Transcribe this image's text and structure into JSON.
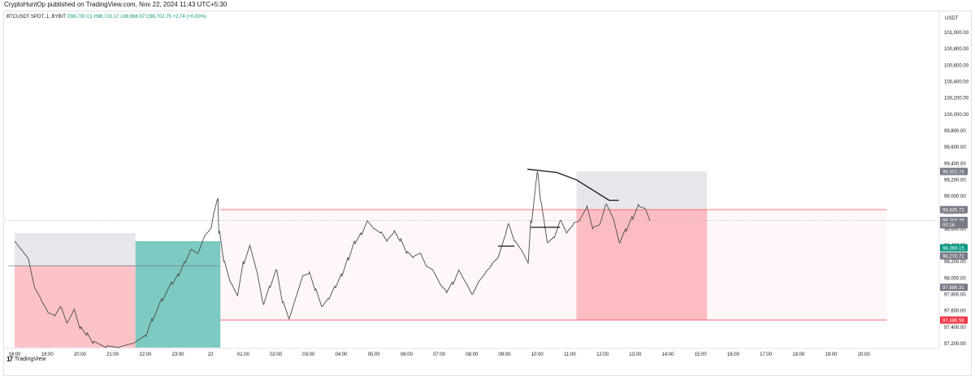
{
  "header": {
    "published": "CryptoHuntOp published on TradingView.com, Nov 22, 2024 11:43 UTC+5:30"
  },
  "symbol": {
    "name": "BTCUSDT SPOT, 1, BYBIT",
    "ohlc": "O98,700.01 H98,710.17 L98,668.97 C98,702.75 +2.74 (+0.00%)"
  },
  "footer": {
    "brand": "TradingView"
  },
  "colors": {
    "accent_green": "#089981",
    "accent_red": "#f23645",
    "profit_zone": "#26a69a",
    "loss_zone": "#f7525f",
    "neutral_zone": "#d1d4dc",
    "candle": "#4a4a4a"
  },
  "chart_data": {
    "type": "line",
    "currency": "USDT",
    "x_ticks": [
      "18:00",
      "19:00",
      "20:00",
      "21:00",
      "22:00",
      "23:00",
      "22",
      "01:00",
      "02:00",
      "03:00",
      "04:00",
      "05:00",
      "06:00",
      "07:00",
      "08:00",
      "09:00",
      "10:00",
      "11:00",
      "12:00",
      "13:00",
      "14:00",
      "15:00",
      "16:00",
      "17:00",
      "18:00",
      "19:00",
      "20:00"
    ],
    "y_ticks": [
      "101,000.00",
      "100,800.00",
      "100,600.00",
      "100,400.00",
      "100,200.00",
      "100,000.00",
      "99,800.00",
      "99,600.00",
      "99,400.00",
      "99,200.00",
      "99,000.00",
      "98,800.00",
      "98,600.00",
      "98,400.00",
      "98,200.00",
      "98,000.00",
      "97,800.00",
      "97,600.00",
      "97,400.00",
      "97,200.00"
    ],
    "y_tick_values": [
      101000,
      100800,
      100600,
      100400,
      100200,
      100000,
      99800,
      99600,
      99400,
      99200,
      99000,
      98800,
      98600,
      98400,
      98200,
      98000,
      97800,
      97600,
      97400,
      97200
    ],
    "ylim": [
      97150,
      101100
    ],
    "xlim": [
      -0.2,
      27
    ],
    "price": [
      [
        0.0,
        98450
      ],
      [
        0.2,
        98350
      ],
      [
        0.4,
        98250
      ],
      [
        0.6,
        97900
      ],
      [
        0.8,
        97750
      ],
      [
        1.0,
        97600
      ],
      [
        1.2,
        97550
      ],
      [
        1.4,
        97650
      ],
      [
        1.6,
        97450
      ],
      [
        1.8,
        97600
      ],
      [
        2.0,
        97380
      ],
      [
        2.2,
        97300
      ],
      [
        2.4,
        97200
      ],
      [
        2.8,
        97150
      ],
      [
        3.2,
        97150
      ],
      [
        3.6,
        97200
      ],
      [
        4.0,
        97300
      ],
      [
        4.2,
        97500
      ],
      [
        4.5,
        97750
      ],
      [
        4.8,
        97950
      ],
      [
        5.0,
        98050
      ],
      [
        5.2,
        98200
      ],
      [
        5.4,
        98350
      ],
      [
        5.6,
        98300
      ],
      [
        5.8,
        98500
      ],
      [
        6.0,
        98600
      ],
      [
        6.1,
        98800
      ],
      [
        6.2,
        98950
      ],
      [
        6.25,
        98550
      ],
      [
        6.4,
        98200
      ],
      [
        6.6,
        97950
      ],
      [
        6.8,
        97800
      ],
      [
        7.0,
        98200
      ],
      [
        7.2,
        98400
      ],
      [
        7.4,
        98100
      ],
      [
        7.6,
        97700
      ],
      [
        7.8,
        97900
      ],
      [
        8.0,
        98100
      ],
      [
        8.2,
        97700
      ],
      [
        8.4,
        97500
      ],
      [
        8.6,
        97750
      ],
      [
        8.8,
        98000
      ],
      [
        9.0,
        98050
      ],
      [
        9.2,
        97850
      ],
      [
        9.4,
        97650
      ],
      [
        9.6,
        97750
      ],
      [
        9.8,
        97900
      ],
      [
        10.0,
        98050
      ],
      [
        10.2,
        98250
      ],
      [
        10.4,
        98450
      ],
      [
        10.6,
        98550
      ],
      [
        10.8,
        98700
      ],
      [
        11.0,
        98600
      ],
      [
        11.2,
        98550
      ],
      [
        11.4,
        98450
      ],
      [
        11.6,
        98550
      ],
      [
        11.8,
        98450
      ],
      [
        12.0,
        98300
      ],
      [
        12.2,
        98250
      ],
      [
        12.4,
        98300
      ],
      [
        12.6,
        98150
      ],
      [
        12.8,
        98100
      ],
      [
        13.0,
        97950
      ],
      [
        13.2,
        97850
      ],
      [
        13.4,
        97950
      ],
      [
        13.6,
        98100
      ],
      [
        13.8,
        97950
      ],
      [
        14.0,
        97800
      ],
      [
        14.2,
        97950
      ],
      [
        14.4,
        98050
      ],
      [
        14.6,
        98150
      ],
      [
        14.8,
        98250
      ],
      [
        15.0,
        98500
      ],
      [
        15.1,
        98650
      ],
      [
        15.3,
        98450
      ],
      [
        15.5,
        98350
      ],
      [
        15.7,
        98200
      ],
      [
        15.8,
        98700
      ],
      [
        16.0,
        99300
      ],
      [
        16.1,
        98950
      ],
      [
        16.3,
        98450
      ],
      [
        16.5,
        98500
      ],
      [
        16.7,
        98700
      ],
      [
        16.9,
        98550
      ],
      [
        17.1,
        98650
      ],
      [
        17.3,
        98700
      ],
      [
        17.5,
        98850
      ],
      [
        17.7,
        98600
      ],
      [
        17.9,
        98650
      ],
      [
        18.1,
        98900
      ],
      [
        18.3,
        98750
      ],
      [
        18.5,
        98450
      ],
      [
        18.7,
        98600
      ],
      [
        18.9,
        98750
      ],
      [
        19.1,
        98900
      ],
      [
        19.3,
        98850
      ],
      [
        19.45,
        98700
      ]
    ],
    "zones": [
      {
        "x0": 0.0,
        "x1": 3.7,
        "y0": 98550,
        "y1": 98150,
        "kind": "neutral"
      },
      {
        "x0": 0.0,
        "x1": 3.7,
        "y0": 98150,
        "y1": 97150,
        "kind": "loss"
      },
      {
        "x0": 3.7,
        "x1": 6.3,
        "y0": 98150,
        "y1": 98450,
        "kind": "profit"
      },
      {
        "x0": 3.7,
        "x1": 6.3,
        "y0": 97150,
        "y1": 98150,
        "kind": "profit"
      },
      {
        "x0": 6.3,
        "x1": 26.7,
        "y0": 98850,
        "y1": 97487,
        "kind": "range"
      },
      {
        "x0": 17.2,
        "x1": 21.2,
        "y0": 99303,
        "y1": 98836,
        "kind": "neutral"
      },
      {
        "x0": 17.2,
        "x1": 21.2,
        "y0": 98836,
        "y1": 98700,
        "kind": "loss"
      },
      {
        "x0": 17.2,
        "x1": 21.2,
        "y0": 98700,
        "y1": 97487,
        "kind": "loss"
      }
    ],
    "levels": [
      {
        "y": 98836,
        "x0": 6.3,
        "x1": 26.7
      },
      {
        "y": 97487,
        "x0": 6.3,
        "x1": 26.7
      },
      {
        "y": 98150,
        "x0": -0.2,
        "x1": 6.3
      }
    ],
    "drawn_lines": [
      {
        "points": [
          [
            14.8,
            98390
          ],
          [
            15.3,
            98390
          ]
        ]
      },
      {
        "points": [
          [
            15.8,
            98620
          ],
          [
            16.7,
            98620
          ]
        ]
      },
      {
        "points": [
          [
            15.7,
            99330
          ],
          [
            16.6,
            99290
          ],
          [
            17.2,
            99200
          ],
          [
            18.2,
            98950
          ],
          [
            18.5,
            98950
          ]
        ]
      }
    ],
    "price_labels": [
      {
        "value": 99302.74,
        "text": "99,302.74",
        "color": "#787b86"
      },
      {
        "value": 98835.72,
        "text": "98,835.72",
        "color": "#787b86"
      },
      {
        "value": 98702.75,
        "text": "98,702.75",
        "color": "#787b86"
      },
      {
        "value": 98650,
        "text": "00:16",
        "color": "#787b86"
      },
      {
        "value": 98369.15,
        "text": "98,369.15",
        "color": "#089981"
      },
      {
        "value": 98270.71,
        "text": "98,270.71",
        "color": "#787b86"
      },
      {
        "value": 97886.31,
        "text": "97,886.31",
        "color": "#787b86"
      },
      {
        "value": 97486.56,
        "text": "97,486.56",
        "color": "#f23645"
      }
    ]
  }
}
